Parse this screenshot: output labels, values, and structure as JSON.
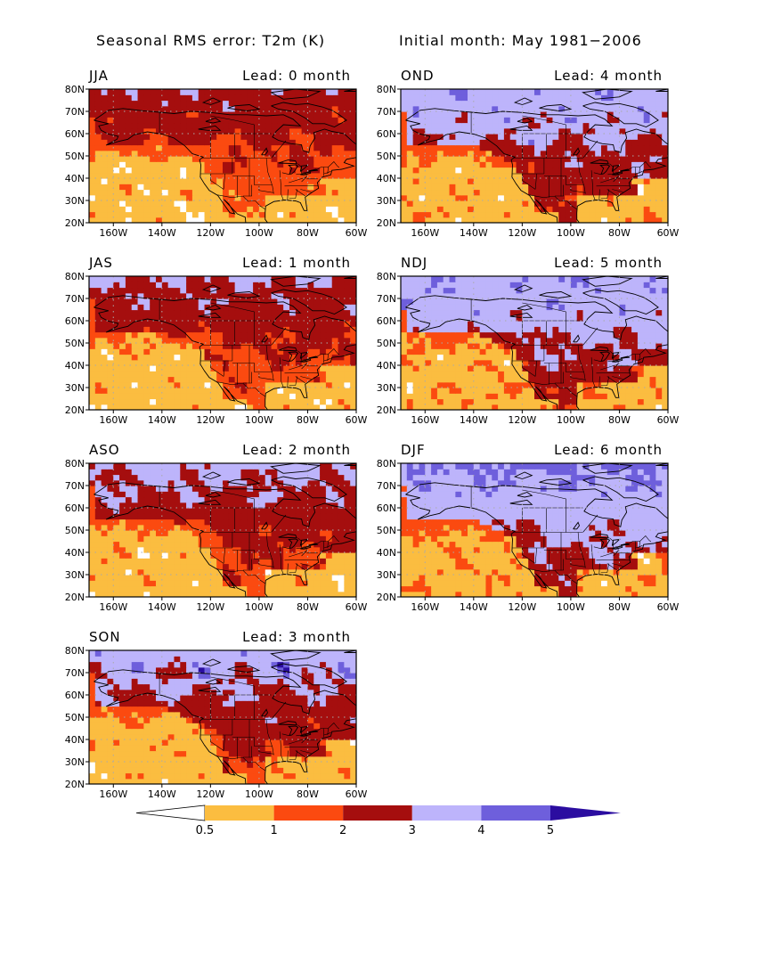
{
  "header": {
    "title": "Seasonal RMS error: T2m (K)",
    "initial": "Initial month: May 1981−2006"
  },
  "colors": {
    "white": "#ffffff",
    "orange_light": "#fbbd40",
    "orange": "#fb4a10",
    "dark_red": "#a50e0e",
    "lavender": "#bdb4fb",
    "purple": "#6e5fdc",
    "navy": "#2b0da0",
    "grid": "#aaaaaa"
  },
  "axes": {
    "lon_ticks": [
      "160W",
      "140W",
      "120W",
      "100W",
      "80W",
      "60W"
    ],
    "lat_ticks": [
      "80N",
      "70N",
      "60N",
      "50N",
      "40N",
      "30N",
      "20N"
    ]
  },
  "panels": [
    {
      "season": "JJA",
      "lead": "Lead: 0 month",
      "level": 0
    },
    {
      "season": "OND",
      "lead": "Lead: 4 month",
      "level": 4
    },
    {
      "season": "JAS",
      "lead": "Lead: 1 month",
      "level": 1
    },
    {
      "season": "NDJ",
      "lead": "Lead: 5 month",
      "level": 5
    },
    {
      "season": "ASO",
      "lead": "Lead: 2 month",
      "level": 2
    },
    {
      "season": "DJF",
      "lead": "Lead: 6 month",
      "level": 6
    },
    {
      "season": "SON",
      "lead": "Lead: 3 month",
      "level": 3
    }
  ],
  "colorbar": {
    "labels": [
      "0.5",
      "1",
      "2",
      "3",
      "4",
      "5"
    ]
  }
}
